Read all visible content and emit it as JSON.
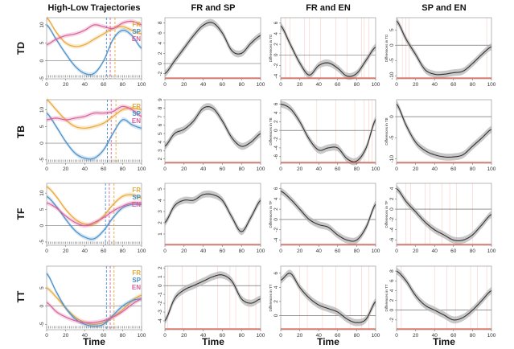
{
  "colors": {
    "FR": "#e8a838",
    "SP": "#4a90c8",
    "EN": "#d9609a",
    "diff": "#333333",
    "band": "#b0b0b0",
    "sig": "#e85a4a",
    "zero": "#555555"
  },
  "column_titles": [
    "High-Low Trajectories",
    "FR and SP",
    "FR and EN",
    "SP and EN"
  ],
  "row_labels": [
    "TD",
    "TB",
    "TF",
    "TT"
  ],
  "xlabel": "Time",
  "legend": [
    "FR",
    "SP",
    "EN"
  ],
  "chart_data": [
    {
      "row": "TD",
      "traj": {
        "type": "line",
        "x": [
          0,
          10,
          20,
          30,
          40,
          50,
          60,
          70,
          80,
          90,
          100
        ],
        "ylim": [
          -5,
          12
        ],
        "yticks": [
          -5,
          0,
          5,
          10
        ],
        "series": [
          {
            "name": "FR",
            "values": [
              12,
              8,
              5,
              4,
              4.5,
              6,
              7.5,
              9,
              9.5,
              8.5,
              7.5
            ]
          },
          {
            "name": "SP",
            "values": [
              10,
              6,
              2,
              -1.5,
              -3.5,
              -3.5,
              0,
              6,
              8.5,
              7,
              3.5
            ]
          },
          {
            "name": "EN",
            "values": [
              4.5,
              6,
              7,
              7.5,
              8.5,
              10,
              9.5,
              9,
              10.5,
              11,
              10
            ]
          }
        ],
        "vlines": [
          {
            "x": 63,
            "color": "SP"
          },
          {
            "x": 67,
            "color": "EN"
          },
          {
            "x": 72,
            "color": "FR"
          }
        ]
      },
      "diffs": [
        {
          "ylabel": "",
          "ylim": [
            -3,
            9
          ],
          "yticks": [
            -2,
            0,
            2,
            4,
            6,
            8
          ],
          "values": [
            -2,
            0.5,
            3,
            5.5,
            7.5,
            8,
            6,
            2.5,
            2,
            4,
            5.5
          ],
          "sig": [],
          "sigAxis": []
        },
        {
          "ylabel": "Differences in TD",
          "ylim": [
            -4.5,
            7
          ],
          "yticks": [
            -4,
            -2,
            0,
            2,
            4,
            6
          ],
          "values": [
            5.5,
            2,
            -1.5,
            -3.8,
            -2,
            -1.5,
            -2.5,
            -4,
            -3.5,
            -1,
            1.5
          ],
          "sig": [
            5,
            10,
            25,
            30,
            42,
            58,
            70,
            85,
            88,
            93
          ],
          "sigAxis": [
            0,
            100
          ]
        },
        {
          "ylabel": "Differences in TD",
          "ylim": [
            -11,
            9
          ],
          "yticks": [
            -10,
            -5,
            0,
            5
          ],
          "values": [
            8,
            2,
            -3,
            -8,
            -9.5,
            -9.5,
            -9,
            -8.5,
            -6,
            -3,
            -0.5
          ],
          "sig": [
            6,
            10,
            13,
            95
          ],
          "sigAxis": [
            0,
            100
          ]
        }
      ]
    },
    {
      "row": "TB",
      "traj": {
        "type": "line",
        "x": [
          0,
          10,
          20,
          30,
          40,
          50,
          60,
          70,
          80,
          90,
          100
        ],
        "ylim": [
          -6,
          13
        ],
        "yticks": [
          -5,
          0,
          5,
          10
        ],
        "series": [
          {
            "name": "FR",
            "values": [
              13,
              10,
              7,
              5,
              4.5,
              5,
              6,
              8,
              10,
              10.5,
              10
            ]
          },
          {
            "name": "SP",
            "values": [
              9,
              5,
              0.5,
              -3,
              -4.5,
              -4.5,
              -2,
              3,
              7,
              5.5,
              4.5
            ]
          },
          {
            "name": "EN",
            "values": [
              7,
              7.5,
              7,
              7.5,
              8,
              9,
              9,
              9.5,
              11,
              10,
              8
            ]
          }
        ],
        "vlines": [
          {
            "x": 64,
            "color": "SP"
          },
          {
            "x": 68,
            "color": "EN"
          },
          {
            "x": 73,
            "color": "FR"
          }
        ]
      },
      "diffs": [
        {
          "ylabel": "",
          "ylim": [
            1.5,
            9
          ],
          "yticks": [
            2,
            3,
            4,
            5,
            6,
            7,
            8,
            9
          ],
          "values": [
            3.5,
            5,
            5.5,
            6.5,
            8,
            8,
            6.5,
            4.5,
            3.5,
            4,
            5
          ],
          "sig": [],
          "sigAxis": []
        },
        {
          "ylabel": "Differences in TB",
          "ylim": [
            -7.5,
            7
          ],
          "yticks": [
            -6,
            -4,
            -2,
            0,
            2,
            4,
            6
          ],
          "values": [
            6,
            5,
            2,
            -2,
            -4.5,
            -4,
            -4,
            -6.5,
            -7,
            -4,
            2.5
          ],
          "sig": [
            38,
            58,
            78,
            88,
            93,
            96
          ],
          "sigAxis": [
            0,
            100
          ]
        },
        {
          "ylabel": "Differences in TB",
          "ylim": [
            -11,
            4
          ],
          "yticks": [
            -10,
            -5,
            0
          ],
          "values": [
            3,
            -2,
            -6,
            -8,
            -9,
            -9.5,
            -9.5,
            -9,
            -7,
            -5,
            -3
          ],
          "sig": [],
          "sigAxis": [
            0,
            100
          ]
        }
      ]
    },
    {
      "row": "TF",
      "traj": {
        "type": "line",
        "x": [
          0,
          10,
          20,
          30,
          40,
          50,
          60,
          70,
          80,
          90,
          100
        ],
        "ylim": [
          -6,
          13
        ],
        "yticks": [
          -5,
          0,
          5,
          10
        ],
        "series": [
          {
            "name": "FR",
            "values": [
              12,
              9,
              5,
              2,
              0.5,
              0.5,
              3,
              6.5,
              9,
              9.5,
              8.5
            ]
          },
          {
            "name": "SP",
            "values": [
              9,
              6,
              2,
              -1.5,
              -3.5,
              -4,
              -1.5,
              2.5,
              5.5,
              6.5,
              6.5
            ]
          },
          {
            "name": "EN",
            "values": [
              7,
              5.5,
              3,
              1,
              0,
              1,
              2.5,
              4.5,
              6,
              7,
              7
            ]
          }
        ],
        "vlines": [
          {
            "x": 62,
            "color": "SP"
          },
          {
            "x": 66,
            "color": "EN"
          },
          {
            "x": 71,
            "color": "FR"
          }
        ]
      },
      "diffs": [
        {
          "ylabel": "",
          "ylim": [
            0,
            5.5
          ],
          "yticks": [
            1,
            2,
            3,
            4,
            5
          ],
          "values": [
            2,
            3.5,
            4,
            4,
            4.5,
            4.5,
            4,
            2.5,
            1.2,
            2.5,
            4
          ],
          "sig": [],
          "sigAxis": []
        },
        {
          "ylabel": "Differences in TF",
          "ylim": [
            -5,
            7
          ],
          "yticks": [
            -4,
            -2,
            0,
            2,
            4,
            6
          ],
          "values": [
            5.5,
            4,
            2,
            0,
            -1,
            -1.5,
            -3,
            -4,
            -4,
            -1.5,
            3
          ],
          "sig": [],
          "sigAxis": [
            0,
            100
          ]
        },
        {
          "ylabel": "Differences in TF",
          "ylim": [
            -7,
            5
          ],
          "yticks": [
            -6,
            -4,
            -2,
            0,
            2,
            4
          ],
          "values": [
            4,
            1.5,
            -0.5,
            -2.5,
            -4,
            -5,
            -6,
            -6,
            -5,
            -3,
            -1
          ],
          "sig": [
            10,
            15,
            30,
            35,
            48,
            56,
            63,
            80
          ],
          "sigAxis": [
            0,
            100
          ]
        }
      ]
    },
    {
      "row": "TT",
      "traj": {
        "type": "line",
        "x": [
          0,
          10,
          20,
          30,
          40,
          50,
          60,
          70,
          80,
          90,
          100
        ],
        "ylim": [
          -6.5,
          11
        ],
        "yticks": [
          -5,
          0,
          5
        ],
        "series": [
          {
            "name": "FR",
            "values": [
              5,
              2.5,
              -0.5,
              -3,
              -4.5,
              -5,
              -4.5,
              -3,
              -1,
              1.5,
              3
            ]
          },
          {
            "name": "SP",
            "values": [
              9,
              4,
              -0.5,
              -3.5,
              -5,
              -5.5,
              -5,
              -2.5,
              0,
              1.5,
              2
            ]
          },
          {
            "name": "EN",
            "values": [
              1,
              -1.5,
              -3,
              -4,
              -4.5,
              -4.5,
              -4,
              -3,
              -1.5,
              0.5,
              2
            ]
          }
        ],
        "vlines": [
          {
            "x": 63,
            "color": "SP"
          },
          {
            "x": 67,
            "color": "EN"
          },
          {
            "x": 71,
            "color": "FR"
          }
        ]
      },
      "diffs": [
        {
          "ylabel": "",
          "ylim": [
            -5,
            2.2
          ],
          "yticks": [
            -4,
            -3,
            -2,
            -1,
            0,
            1,
            2
          ],
          "values": [
            -4,
            -1.5,
            -0.5,
            0,
            0.5,
            1,
            1.2,
            0.5,
            -1.5,
            -2,
            -1.5
          ],
          "sig": [
            3,
            18,
            33,
            55,
            68,
            74,
            88,
            95
          ],
          "sigAxis": [
            0,
            100
          ]
        },
        {
          "ylabel": "Differences in TT",
          "ylim": [
            -2,
            7
          ],
          "yticks": [
            0,
            2,
            4,
            6
          ],
          "values": [
            5,
            6,
            4,
            2.5,
            1.5,
            1,
            0.5,
            -0.5,
            -1,
            -0.5,
            2
          ],
          "sig": [
            20,
            28,
            44,
            58,
            73,
            85,
            93
          ],
          "sigAxis": [
            0,
            100
          ]
        },
        {
          "ylabel": "Differences in TT",
          "ylim": [
            -4,
            9
          ],
          "yticks": [
            -2,
            0,
            2,
            4,
            6,
            8
          ],
          "values": [
            8,
            6,
            3,
            1,
            0,
            -1,
            -2,
            -1.5,
            0,
            2,
            4
          ],
          "sig": [
            5,
            40,
            53,
            62,
            78,
            85,
            95
          ],
          "sigAxis": [
            0,
            100
          ]
        }
      ]
    }
  ]
}
